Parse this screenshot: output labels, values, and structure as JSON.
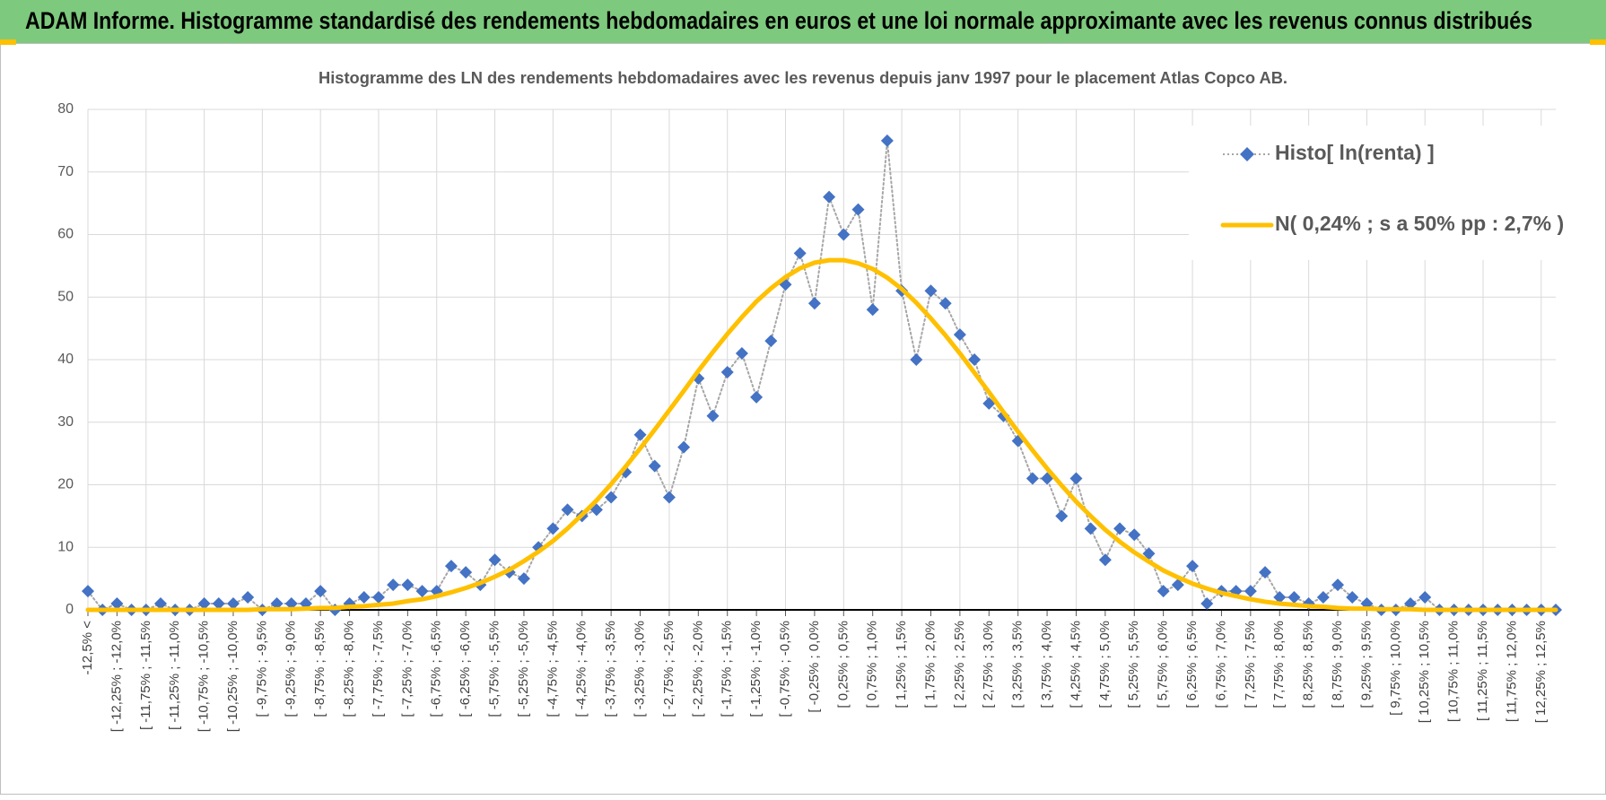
{
  "header": {
    "title": "ADAM Informe. Histogramme standardisé des rendements hebdomadaires en euros et une loi normale approximante avec les revenus connus distribués"
  },
  "chart_data": {
    "type": "line",
    "title": "Histogramme  des LN des rendements hebdomadaires avec les revenus depuis janv 1997 pour le placement Atlas Copco AB.",
    "categories": [
      "-12,5% <",
      null,
      "[ -12,25% ; -12,0%",
      null,
      "[ -11,75% ; -11,5%",
      null,
      "[ -11,25% ; -11,0%",
      null,
      "[ -10,75% ; -10,5%",
      null,
      "[ -10,25% ; -10,0%",
      null,
      "[ -9,75% ; -9,5%",
      null,
      "[ -9,25% ; -9,0%",
      null,
      "[ -8,75% ; -8,5%",
      null,
      "[ -8,25% ; -8,0%",
      null,
      "[ -7,75% ; -7,5%",
      null,
      "[ -7,25% ; -7,0%",
      null,
      "[ -6,75% ; -6,5%",
      null,
      "[ -6,25% ; -6,0%",
      null,
      "[ -5,75% ; -5,5%",
      null,
      "[ -5,25% ; -5,0%",
      null,
      "[ -4,75% ; -4,5%",
      null,
      "[ -4,25% ; -4,0%",
      null,
      "[ -3,75% ; -3,5%",
      null,
      "[ -3,25% ; -3,0%",
      null,
      "[ -2,75% ; -2,5%",
      null,
      "[ -2,25% ; -2,0%",
      null,
      "[ -1,75% ; -1,5%",
      null,
      "[ -1,25% ; -1,0%",
      null,
      "[ -0,75% ; -0,5%",
      null,
      "[ -0,25% ; 0,0%",
      null,
      "[ 0,25% ; 0,5%",
      null,
      "[ 0,75% ; 1,0%",
      null,
      "[ 1,25% ; 1,5%",
      null,
      "[ 1,75% ; 2,0%",
      null,
      "[ 2,25% ; 2,5%",
      null,
      "[ 2,75% ; 3,0%",
      null,
      "[ 3,25% ; 3,5%",
      null,
      "[ 3,75% ; 4,0%",
      null,
      "[ 4,25% ; 4,5%",
      null,
      "[ 4,75% ; 5,0%",
      null,
      "[ 5,25% ; 5,5%",
      null,
      "[ 5,75% ; 6,0%",
      null,
      "[ 6,25% ; 6,5%",
      null,
      "[ 6,75% ; 7,0%",
      null,
      "[ 7,25% ; 7,5%",
      null,
      "[ 7,75% ; 8,0%",
      null,
      "[ 8,25% ; 8,5%",
      null,
      "[ 8,75% ; 9,0%",
      null,
      "[ 9,25% ; 9,5%",
      null,
      "[ 9,75% ; 10,0%",
      null,
      "[ 10,25% ; 10,5%",
      null,
      "[ 10,75% ; 11,0%",
      null,
      "[ 11,25% ; 11,5%",
      null,
      "[ 11,75% ; 12,0%",
      null,
      "[ 12,25% ; 12,5%",
      null
    ],
    "series": [
      {
        "name": "Histo[ ln(renta) ]",
        "color": "#4472c4",
        "marker": "diamond",
        "line_style": "dotted",
        "line_color": "#a6a6a6",
        "values": [
          3,
          0,
          1,
          0,
          0,
          1,
          0,
          0,
          1,
          1,
          1,
          2,
          0,
          1,
          1,
          1,
          3,
          0,
          1,
          2,
          2,
          4,
          4,
          3,
          3,
          7,
          6,
          4,
          8,
          6,
          5,
          10,
          13,
          16,
          15,
          16,
          18,
          22,
          28,
          23,
          18,
          26,
          37,
          31,
          38,
          41,
          34,
          43,
          52,
          57,
          49,
          66,
          60,
          64,
          48,
          75,
          51,
          40,
          51,
          49,
          44,
          40,
          33,
          31,
          27,
          21,
          21,
          15,
          21,
          13,
          8,
          13,
          12,
          9,
          3,
          4,
          7,
          1,
          3,
          3,
          3,
          6,
          2,
          2,
          1,
          2,
          4,
          2,
          1,
          0,
          0,
          1,
          2,
          0,
          0,
          0,
          0,
          0,
          0,
          0,
          0,
          0
        ]
      },
      {
        "name": "N( 0,24% ; s a 50% pp : 2,7% )",
        "color": "#ffc000",
        "marker": "none",
        "line_style": "solid",
        "values": [
          0,
          0,
          0,
          0,
          0,
          0,
          0,
          0,
          0,
          0,
          0,
          0,
          0.1,
          0.1,
          0.1,
          0.2,
          0.3,
          0.3,
          0.5,
          0.6,
          0.8,
          1.0,
          1.4,
          1.7,
          2.2,
          2.8,
          3.5,
          4.3,
          5.3,
          6.4,
          7.8,
          9.3,
          11.0,
          13.0,
          15.2,
          17.5,
          20.1,
          22.9,
          25.8,
          28.8,
          31.9,
          35.0,
          38.2,
          41.2,
          44.1,
          46.8,
          49.3,
          51.4,
          53.2,
          54.6,
          55.5,
          55.9,
          55.9,
          55.4,
          54.5,
          53.1,
          51.3,
          49.1,
          46.6,
          43.9,
          41.0,
          37.9,
          34.8,
          31.6,
          28.5,
          25.5,
          22.6,
          19.9,
          17.3,
          15.0,
          12.8,
          10.9,
          9.2,
          7.7,
          6.3,
          5.2,
          4.2,
          3.4,
          2.7,
          2.2,
          1.7,
          1.3,
          1.0,
          0.8,
          0.6,
          0.5,
          0.3,
          0.2,
          0.2,
          0.1,
          0.1,
          0.1,
          0,
          0,
          0,
          0,
          0,
          0,
          0,
          0,
          0,
          0
        ]
      }
    ],
    "ylim": [
      0,
      80
    ],
    "yticks": [
      0,
      10,
      20,
      30,
      40,
      50,
      60,
      70,
      80
    ],
    "grid": true,
    "legend": "upper right"
  }
}
